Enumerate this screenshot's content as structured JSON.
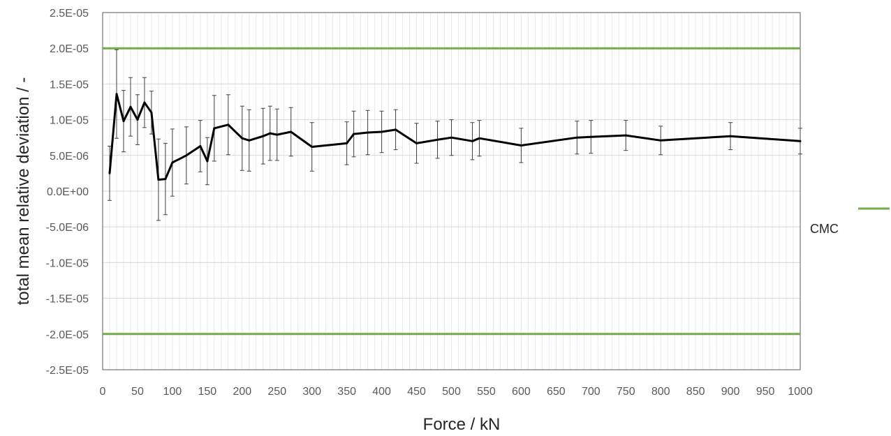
{
  "chart_data": {
    "type": "line",
    "title": "",
    "xlabel": "Force / kN",
    "ylabel": "total mean relative deviation / -",
    "xlim": [
      0,
      1000
    ],
    "ylim": [
      -2.5e-05,
      2.5e-05
    ],
    "x_ticks": [
      0,
      50,
      100,
      150,
      200,
      250,
      300,
      350,
      400,
      450,
      500,
      550,
      600,
      650,
      700,
      750,
      800,
      850,
      900,
      950,
      1000
    ],
    "x_tick_labels": [
      "0",
      "50",
      "100",
      "150",
      "200",
      "250",
      "300",
      "350",
      "400",
      "450",
      "500",
      "550",
      "600",
      "650",
      "700",
      "750",
      "800",
      "850",
      "900",
      "950",
      "1000"
    ],
    "y_ticks": [
      2.5e-05,
      2e-05,
      1.5e-05,
      1e-05,
      5e-06,
      0,
      -5e-06,
      -1e-05,
      -1.5e-05,
      -2e-05,
      -2.5e-05
    ],
    "y_tick_labels": [
      "2.5E-05",
      "2.0E-05",
      "1.5E-05",
      "1.0E-05",
      "5.0E-06",
      "0.0E+00",
      "-5.0E-06",
      "-1.0E-05",
      "-1.5E-05",
      "-2.0E-05",
      "-2.5E-05"
    ],
    "grid": {
      "horizontal": true,
      "vertical_minor": true
    },
    "legend_position": "right",
    "series": [
      {
        "color": "#000000",
        "error_bar_color": "#404040",
        "x": [
          10,
          20,
          30,
          40,
          50,
          60,
          70,
          80,
          90,
          100,
          120,
          140,
          150,
          160,
          180,
          200,
          210,
          230,
          240,
          250,
          270,
          300,
          350,
          360,
          380,
          400,
          420,
          450,
          480,
          500,
          530,
          540,
          600,
          680,
          700,
          750,
          800,
          900,
          1000
        ],
        "y": [
          2.5e-06,
          1.36e-05,
          9.8e-06,
          1.18e-05,
          1e-05,
          1.24e-05,
          1.1e-05,
          1.6e-06,
          1.7e-06,
          4e-06,
          5e-06,
          6.3e-06,
          4.2e-06,
          8.8e-06,
          9.3e-06,
          7.4e-06,
          7.1e-06,
          7.7e-06,
          8.1e-06,
          7.9e-06,
          8.3e-06,
          6.2e-06,
          6.7e-06,
          8e-06,
          8.2e-06,
          8.3e-06,
          8.6e-06,
          6.7e-06,
          7.2e-06,
          7.5e-06,
          7e-06,
          7.4e-06,
          6.4e-06,
          7.5e-06,
          7.6e-06,
          7.8e-06,
          7.1e-06,
          7.7e-06,
          7e-06
        ],
        "error": [
          3.8e-06,
          6.2e-06,
          4.3e-06,
          4.1e-06,
          3.5e-06,
          3.5e-06,
          3e-06,
          5.7e-06,
          5e-06,
          4.7e-06,
          4e-06,
          3.6e-06,
          3.3e-06,
          4.6e-06,
          4.2e-06,
          4.5e-06,
          4.3e-06,
          3.9e-06,
          3.8e-06,
          3.6e-06,
          3.4e-06,
          3.4e-06,
          3e-06,
          3.2e-06,
          3.1e-06,
          2.9e-06,
          2.8e-06,
          2.8e-06,
          2.6e-06,
          2.5e-06,
          2.6e-06,
          2.5e-06,
          2.4e-06,
          2.3e-06,
          2.3e-06,
          2.1e-06,
          2e-06,
          1.9e-06,
          1.8e-06
        ]
      },
      {
        "name": "CMC",
        "color": "#70ad47",
        "x": [
          0,
          1000
        ],
        "y": [
          2e-05,
          2e-05
        ]
      },
      {
        "name": "",
        "color": "#70ad47",
        "x": [
          0,
          1000
        ],
        "y": [
          -2e-05,
          -2e-05
        ]
      }
    ]
  }
}
